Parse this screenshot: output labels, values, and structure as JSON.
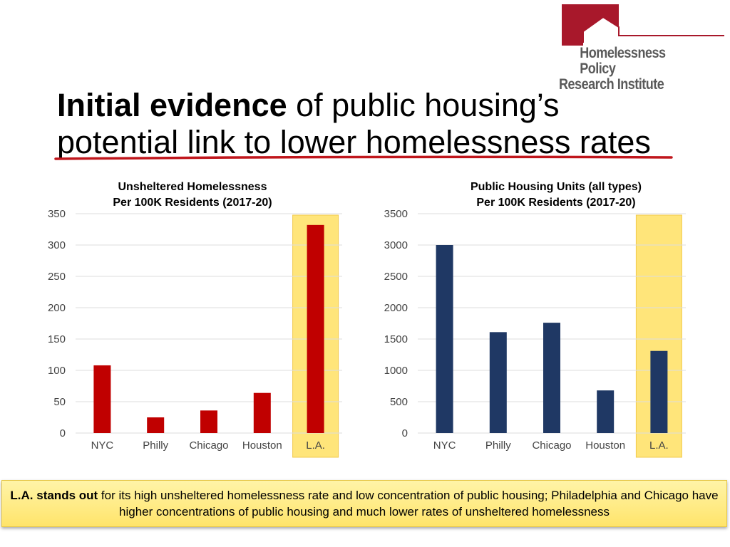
{
  "logo": {
    "line1": "Homelessness Policy",
    "line2": "Research Institute",
    "colors": {
      "mark": "#a8182b",
      "text": "#5a5a5a"
    }
  },
  "title": {
    "bold": "Initial evidence",
    "rest": " of public housing’s",
    "line2": "potential link to lower homelessness rates",
    "underline_color": "#c0161c"
  },
  "chart_data": [
    {
      "type": "bar",
      "title": "Unsheltered Homelessness",
      "subtitle": "Per 100K Residents (2017-20)",
      "categories": [
        "NYC",
        "Philly",
        "Chicago",
        "Houston",
        "L.A."
      ],
      "values": [
        108,
        25,
        36,
        64,
        332
      ],
      "ylim": [
        0,
        350
      ],
      "yticks": [
        0,
        50,
        100,
        150,
        200,
        250,
        300,
        350
      ],
      "bar_color": "#c00000",
      "highlight_category": "L.A.",
      "grid": true
    },
    {
      "type": "bar",
      "title": "Public Housing Units (all types)",
      "subtitle": "Per 100K Residents (2017-20)",
      "categories": [
        "NYC",
        "Philly",
        "Chicago",
        "Houston",
        "L.A."
      ],
      "values": [
        3000,
        1610,
        1760,
        680,
        1310
      ],
      "ylim": [
        0,
        3500
      ],
      "yticks": [
        0,
        500,
        1000,
        1500,
        2000,
        2500,
        3000,
        3500
      ],
      "bar_color": "#1f3864",
      "highlight_category": "L.A.",
      "grid": true
    }
  ],
  "highlight_color": "#ffe57a",
  "callout": {
    "bold": "L.A. stands out",
    "rest": " for its high unsheltered homelessness rate and low concentration of public housing; Philadelphia and Chicago have higher concentrations of public housing and much lower rates of unsheltered homelessness"
  }
}
